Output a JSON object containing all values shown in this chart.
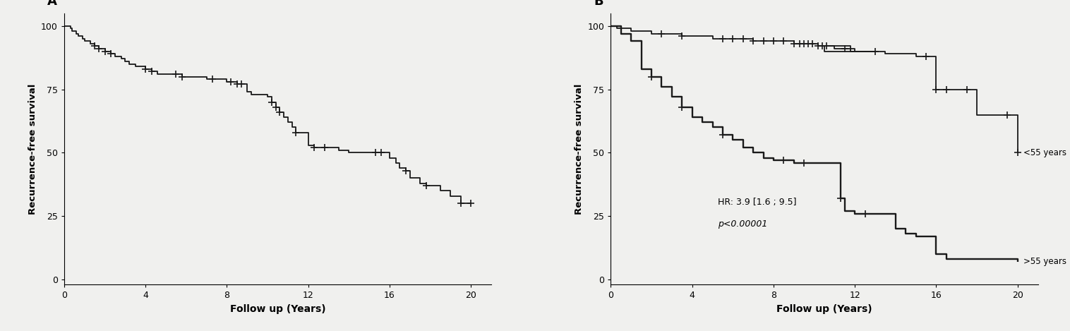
{
  "panel_A_label": "A",
  "panel_B_label": "B",
  "xlabel": "Follow up (Years)",
  "ylabel": "Recurrence-free survival",
  "xlim": [
    0,
    21
  ],
  "ylim": [
    -2,
    105
  ],
  "xticks": [
    0,
    4,
    8,
    12,
    16,
    20
  ],
  "yticks": [
    0,
    25,
    50,
    75,
    100
  ],
  "A_steps": [
    [
      0,
      100
    ],
    [
      0.3,
      99
    ],
    [
      0.4,
      98
    ],
    [
      0.6,
      97
    ],
    [
      0.7,
      96
    ],
    [
      0.9,
      95
    ],
    [
      1.0,
      94
    ],
    [
      1.3,
      93
    ],
    [
      1.5,
      92
    ],
    [
      1.7,
      91
    ],
    [
      2.0,
      90
    ],
    [
      2.3,
      89
    ],
    [
      2.5,
      88
    ],
    [
      2.8,
      87
    ],
    [
      3.0,
      86
    ],
    [
      3.2,
      85
    ],
    [
      3.5,
      84
    ],
    [
      4.0,
      83
    ],
    [
      4.3,
      82
    ],
    [
      4.6,
      81
    ],
    [
      5.0,
      81
    ],
    [
      5.5,
      81
    ],
    [
      5.8,
      80
    ],
    [
      6.0,
      80
    ],
    [
      6.3,
      80
    ],
    [
      6.8,
      80
    ],
    [
      7.0,
      79
    ],
    [
      7.3,
      79
    ],
    [
      8.0,
      78
    ],
    [
      8.2,
      78
    ],
    [
      8.5,
      77
    ],
    [
      8.7,
      77
    ],
    [
      9.0,
      74
    ],
    [
      9.2,
      73
    ],
    [
      9.5,
      73
    ],
    [
      10.0,
      72
    ],
    [
      10.2,
      70
    ],
    [
      10.4,
      68
    ],
    [
      10.6,
      66
    ],
    [
      10.8,
      64
    ],
    [
      11.0,
      62
    ],
    [
      11.2,
      60
    ],
    [
      11.4,
      58
    ],
    [
      12.0,
      53
    ],
    [
      12.3,
      52
    ],
    [
      12.8,
      52
    ],
    [
      13.0,
      52
    ],
    [
      13.5,
      51
    ],
    [
      14.0,
      50
    ],
    [
      14.5,
      50
    ],
    [
      15.0,
      50
    ],
    [
      15.3,
      50
    ],
    [
      15.6,
      50
    ],
    [
      16.0,
      48
    ],
    [
      16.3,
      46
    ],
    [
      16.5,
      44
    ],
    [
      16.8,
      43
    ],
    [
      17.0,
      40
    ],
    [
      17.5,
      38
    ],
    [
      17.8,
      37
    ],
    [
      18.5,
      35
    ],
    [
      19.0,
      33
    ],
    [
      19.5,
      30
    ],
    [
      20.0,
      30
    ]
  ],
  "A_censors": [
    [
      1.5,
      92
    ],
    [
      1.7,
      91
    ],
    [
      2.0,
      90
    ],
    [
      2.3,
      89
    ],
    [
      4.0,
      83
    ],
    [
      4.3,
      82
    ],
    [
      5.5,
      81
    ],
    [
      5.8,
      80
    ],
    [
      7.3,
      79
    ],
    [
      8.2,
      78
    ],
    [
      8.5,
      77
    ],
    [
      8.7,
      77
    ],
    [
      10.2,
      70
    ],
    [
      10.4,
      68
    ],
    [
      10.6,
      66
    ],
    [
      11.4,
      58
    ],
    [
      12.3,
      52
    ],
    [
      12.8,
      52
    ],
    [
      15.3,
      50
    ],
    [
      15.6,
      50
    ],
    [
      16.8,
      43
    ],
    [
      17.8,
      37
    ],
    [
      19.5,
      30
    ],
    [
      20.0,
      30
    ]
  ],
  "B_young_steps": [
    [
      0,
      100
    ],
    [
      0.3,
      99
    ],
    [
      0.5,
      99
    ],
    [
      1.0,
      98
    ],
    [
      1.5,
      98
    ],
    [
      2.0,
      97
    ],
    [
      2.5,
      97
    ],
    [
      3.0,
      97
    ],
    [
      3.5,
      96
    ],
    [
      4.0,
      96
    ],
    [
      5.0,
      95
    ],
    [
      5.5,
      95
    ],
    [
      6.0,
      95
    ],
    [
      6.5,
      95
    ],
    [
      7.0,
      94
    ],
    [
      7.5,
      94
    ],
    [
      8.0,
      94
    ],
    [
      8.5,
      94
    ],
    [
      9.0,
      93
    ],
    [
      9.3,
      93
    ],
    [
      9.5,
      93
    ],
    [
      9.7,
      93
    ],
    [
      9.9,
      93
    ],
    [
      10.2,
      92
    ],
    [
      10.4,
      92
    ],
    [
      10.6,
      92
    ],
    [
      10.8,
      92
    ],
    [
      11.0,
      91
    ],
    [
      11.5,
      91
    ],
    [
      12.0,
      90
    ],
    [
      12.5,
      90
    ],
    [
      13.0,
      90
    ],
    [
      10.5,
      92
    ],
    [
      11.8,
      90
    ],
    [
      12.0,
      90
    ],
    [
      13.0,
      90
    ],
    [
      13.5,
      89
    ],
    [
      14.0,
      89
    ],
    [
      15.0,
      88
    ],
    [
      15.5,
      88
    ],
    [
      16.0,
      75
    ],
    [
      16.5,
      75
    ],
    [
      17.0,
      75
    ],
    [
      17.5,
      75
    ],
    [
      18.0,
      65
    ],
    [
      18.5,
      65
    ],
    [
      19.0,
      65
    ],
    [
      19.5,
      65
    ],
    [
      20.0,
      50
    ]
  ],
  "B_young_censors": [
    [
      2.5,
      97
    ],
    [
      3.5,
      96
    ],
    [
      5.5,
      95
    ],
    [
      6.0,
      95
    ],
    [
      6.5,
      95
    ],
    [
      7.0,
      94
    ],
    [
      7.5,
      94
    ],
    [
      8.0,
      94
    ],
    [
      8.5,
      94
    ],
    [
      9.0,
      93
    ],
    [
      9.3,
      93
    ],
    [
      9.5,
      93
    ],
    [
      9.7,
      93
    ],
    [
      9.9,
      93
    ],
    [
      10.2,
      92
    ],
    [
      10.4,
      92
    ],
    [
      10.6,
      92
    ],
    [
      11.5,
      91
    ],
    [
      13.0,
      90
    ],
    [
      15.5,
      88
    ],
    [
      16.0,
      75
    ],
    [
      16.5,
      75
    ],
    [
      17.5,
      75
    ],
    [
      19.5,
      65
    ],
    [
      20.0,
      50
    ]
  ],
  "B_old_steps": [
    [
      0,
      100
    ],
    [
      0.5,
      97
    ],
    [
      1.0,
      94
    ],
    [
      1.5,
      83
    ],
    [
      2.0,
      80
    ],
    [
      2.5,
      76
    ],
    [
      3.0,
      72
    ],
    [
      3.5,
      68
    ],
    [
      4.0,
      64
    ],
    [
      4.5,
      62
    ],
    [
      5.0,
      60
    ],
    [
      5.5,
      57
    ],
    [
      6.0,
      55
    ],
    [
      6.5,
      52
    ],
    [
      7.0,
      50
    ],
    [
      7.5,
      48
    ],
    [
      8.0,
      47
    ],
    [
      8.5,
      47
    ],
    [
      9.0,
      46
    ],
    [
      9.5,
      46
    ],
    [
      10.0,
      46
    ],
    [
      10.5,
      46
    ],
    [
      11.0,
      46
    ],
    [
      11.3,
      32
    ],
    [
      11.5,
      27
    ],
    [
      12.0,
      26
    ],
    [
      12.5,
      26
    ],
    [
      13.0,
      26
    ],
    [
      13.5,
      26
    ],
    [
      14.0,
      20
    ],
    [
      14.5,
      18
    ],
    [
      15.0,
      17
    ],
    [
      15.5,
      17
    ],
    [
      16.0,
      10
    ],
    [
      16.5,
      8
    ],
    [
      17.0,
      8
    ],
    [
      20.0,
      7
    ]
  ],
  "B_old_censors": [
    [
      2.0,
      80
    ],
    [
      3.5,
      68
    ],
    [
      5.5,
      57
    ],
    [
      8.5,
      47
    ],
    [
      9.5,
      46
    ],
    [
      11.3,
      32
    ],
    [
      12.5,
      26
    ]
  ],
  "annotation_hr": "HR: 3.9 [1.6 ; 9.5]",
  "annotation_p": "p<0.00001",
  "label_young": "<55 years",
  "label_old": ">55 years",
  "line_color": "#1a1a1a",
  "censor_size": 7,
  "lw": 1.3
}
